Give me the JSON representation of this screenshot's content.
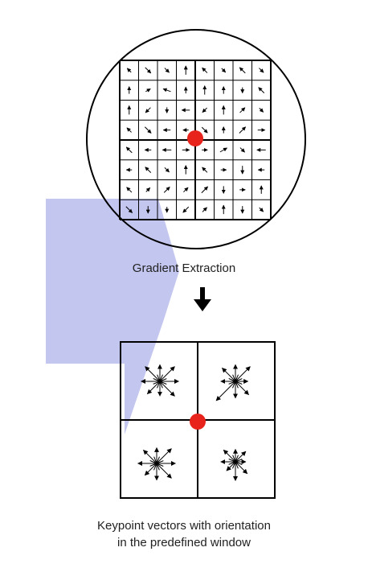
{
  "diagram": {
    "title_step1": "Gradient Extraction",
    "caption_step2_line1": "Keypoint vectors with orientation",
    "caption_step2_line2": "in the predefined window",
    "colors": {
      "keypoint": "#e8231c",
      "overlay": "#c3c6ef",
      "line": "#000000"
    },
    "gradient_grid": {
      "rows": 8,
      "cols": 8,
      "arrow_angles_deg": [
        [
          135,
          315,
          315,
          90,
          135,
          315,
          135,
          315
        ],
        [
          90,
          30,
          160,
          90,
          90,
          90,
          270,
          135
        ],
        [
          90,
          225,
          270,
          180,
          225,
          90,
          45,
          315
        ],
        [
          135,
          315,
          180,
          180,
          315,
          90,
          45,
          0
        ],
        [
          135,
          180,
          180,
          0,
          0,
          30,
          315,
          180
        ],
        [
          180,
          135,
          315,
          90,
          135,
          0,
          270,
          180
        ],
        [
          135,
          45,
          45,
          45,
          45,
          270,
          0,
          90
        ],
        [
          315,
          270,
          270,
          225,
          45,
          90,
          270,
          315
        ]
      ]
    },
    "orientation_bins": [
      {
        "quadrant": "top-left",
        "magnitudes": [
          0.9,
          1.0,
          0.8,
          1.0,
          0.9,
          0.85,
          0.7,
          1.0
        ]
      },
      {
        "quadrant": "top-right",
        "magnitudes": [
          0.6,
          1.0,
          0.8,
          0.9,
          0.7,
          1.3,
          0.8,
          0.9
        ]
      },
      {
        "quadrant": "bottom-left",
        "magnitudes": [
          0.9,
          1.0,
          0.75,
          0.9,
          0.9,
          0.8,
          0.8,
          1.0
        ]
      },
      {
        "quadrant": "bottom-right",
        "magnitudes": [
          0.5,
          0.7,
          0.6,
          0.8,
          0.7,
          0.6,
          0.9,
          0.8
        ]
      }
    ]
  }
}
